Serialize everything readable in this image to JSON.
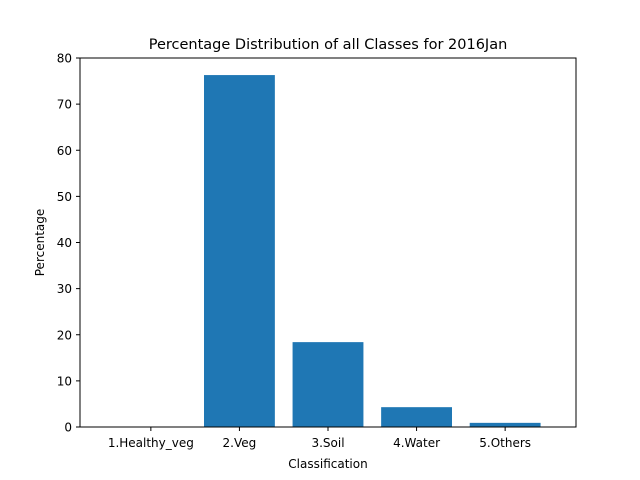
{
  "chart_data": {
    "type": "bar",
    "title": "Percentage Distribution of all Classes for 2016Jan",
    "xlabel": "Classification",
    "ylabel": "Percentage",
    "categories": [
      "1.Healthy_veg",
      "2.Veg",
      "3.Soil",
      "4.Water",
      "5.Others"
    ],
    "values": [
      0,
      76.3,
      18.4,
      4.3,
      0.9
    ],
    "ylim": [
      0,
      80
    ],
    "yticks": [
      "0",
      "10",
      "20",
      "30",
      "40",
      "50",
      "60",
      "70",
      "80"
    ],
    "bar_color": "#1f77b4",
    "grid": false,
    "legend": "none"
  }
}
